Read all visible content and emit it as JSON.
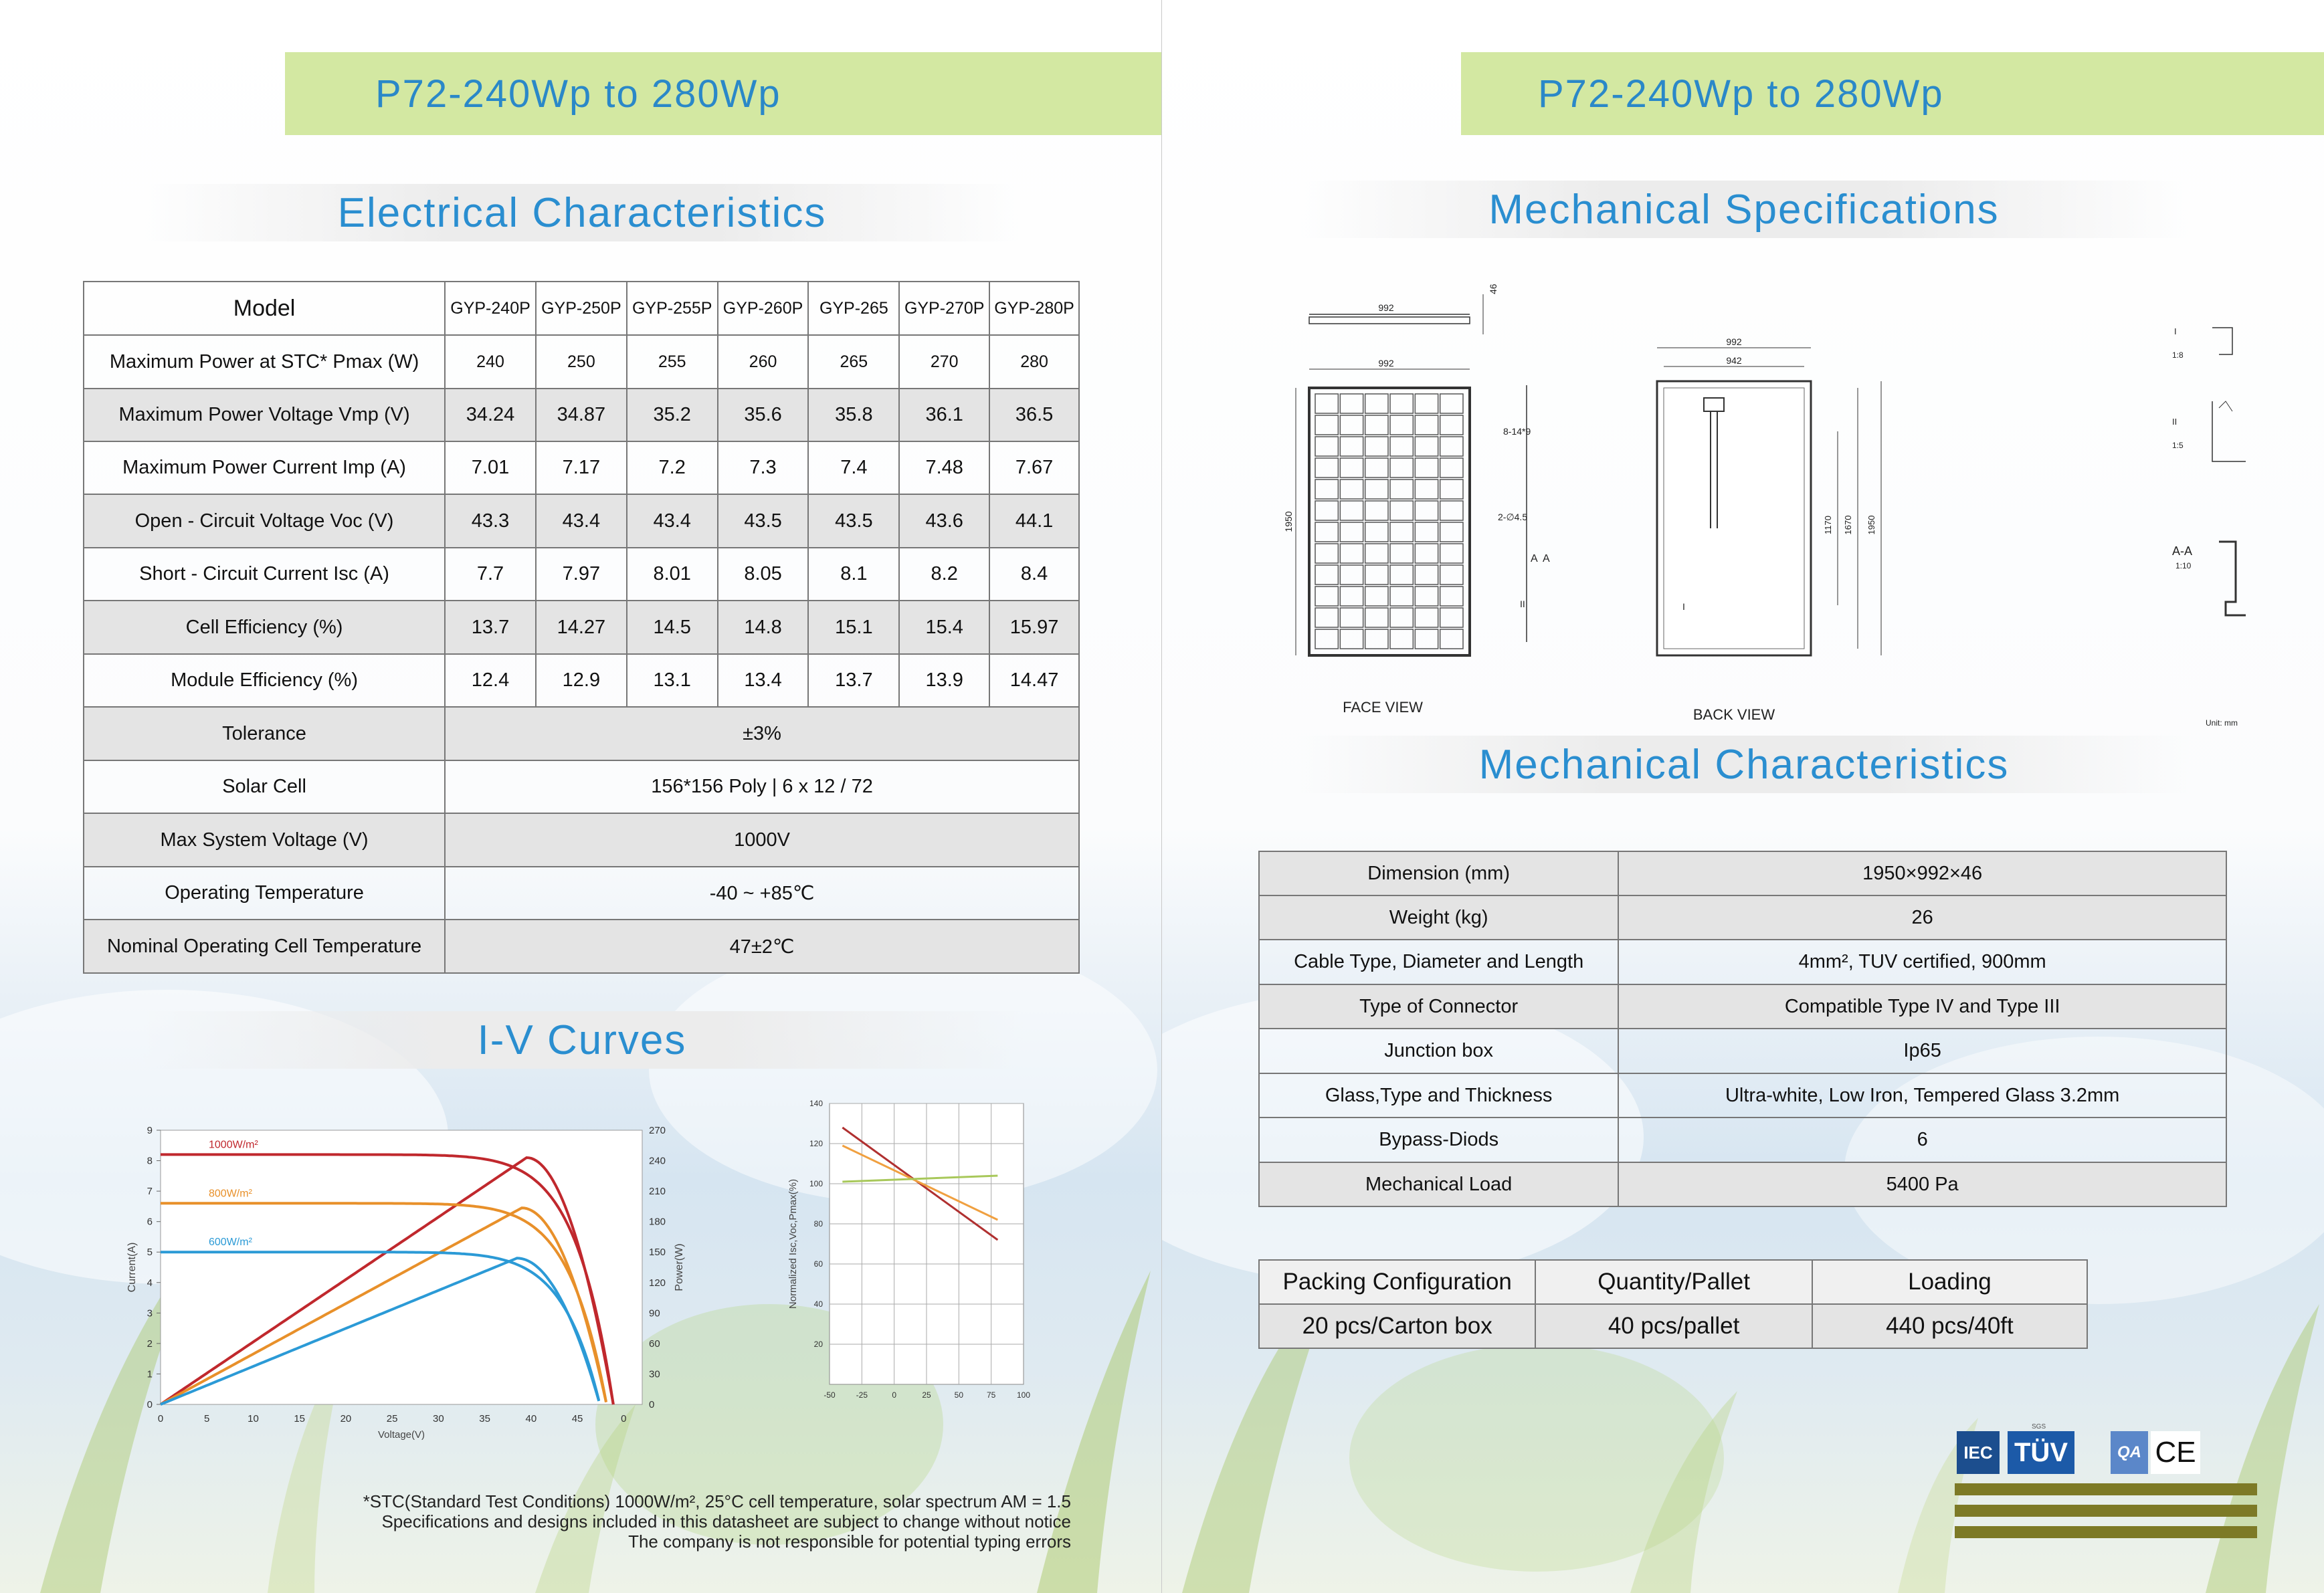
{
  "left": {
    "banner": "P72-240Wp to 280Wp",
    "electrical_title": "Electrical Characteristics",
    "electrical": {
      "model_label": "Model",
      "models": [
        "GYP-240P",
        "GYP-250P",
        "GYP-255P",
        "GYP-260P",
        "GYP-265",
        "GYP-270P",
        "GYP-280P"
      ],
      "rows": [
        {
          "label": "Maximum Power at STC* Pmax (W)",
          "values": [
            "240",
            "250",
            "255",
            "260",
            "265",
            "270",
            "280"
          ]
        },
        {
          "label": "Maximum Power Voltage Vmp (V)",
          "values": [
            "34.24",
            "34.87",
            "35.2",
            "35.6",
            "35.8",
            "36.1",
            "36.5"
          ]
        },
        {
          "label": "Maximum Power Current Imp (A)",
          "values": [
            "7.01",
            "7.17",
            "7.2",
            "7.3",
            "7.4",
            "7.48",
            "7.67"
          ]
        },
        {
          "label": "Open - Circuit Voltage Voc (V)",
          "values": [
            "43.3",
            "43.4",
            "43.4",
            "43.5",
            "43.5",
            "43.6",
            "44.1"
          ]
        },
        {
          "label": "Short - Circuit Current Isc (A)",
          "values": [
            "7.7",
            "7.97",
            "8.01",
            "8.05",
            "8.1",
            "8.2",
            "8.4"
          ]
        },
        {
          "label": "Cell Efficiency (%)",
          "values": [
            "13.7",
            "14.27",
            "14.5",
            "14.8",
            "15.1",
            "15.4",
            "15.97"
          ]
        },
        {
          "label": "Module Efficiency (%)",
          "values": [
            "12.4",
            "12.9",
            "13.1",
            "13.4",
            "13.7",
            "13.9",
            "14.47"
          ]
        }
      ],
      "spanned_rows": [
        {
          "label": "Tolerance",
          "value": "±3%"
        },
        {
          "label": "Solar Cell",
          "value": "156*156 Poly | 6 x 12 / 72"
        },
        {
          "label": "Max System Voltage (V)",
          "value": "1000V"
        },
        {
          "label": "Operating Temperature",
          "value": "-40 ~ +85℃"
        },
        {
          "label": "Nominal Operating Cell Temperature",
          "value": "47±2℃"
        }
      ]
    },
    "iv_title": "I-V Curves",
    "footnote": [
      "*STC(Standard Test Conditions) 1000W/m², 25°C cell temperature, solar spectrum AM = 1.5",
      "Specifications and designs included in this datasheet are subject to change without notice",
      "The company is not responsible for potential typing errors"
    ]
  },
  "chart_data": [
    {
      "type": "line",
      "xlabel": "Voltage(V)",
      "ylabel": "Current(A)",
      "y2label": "Power(W)",
      "x_ticks": [
        "0",
        "5",
        "10",
        "15",
        "20",
        "25",
        "30",
        "35",
        "40",
        "45",
        "0"
      ],
      "y_ticks": [
        "0",
        "1",
        "2",
        "3",
        "4",
        "5",
        "6",
        "7",
        "8",
        "9"
      ],
      "y2_ticks": [
        "0",
        "30",
        "60",
        "90",
        "120",
        "150",
        "180",
        "210",
        "240",
        "270"
      ],
      "xlim": [
        0,
        50
      ],
      "ylim": [
        0,
        9
      ],
      "y2lim": [
        0,
        300
      ],
      "series": [
        {
          "name": "1000W/m²",
          "color": "#c0282d",
          "isc": 8.2,
          "voc": 47,
          "pmax": 270,
          "vmp": 38
        },
        {
          "name": "800W/m²",
          "color": "#e8902a",
          "isc": 6.6,
          "voc": 46.3,
          "pmax": 215,
          "vmp": 37.5
        },
        {
          "name": "600W/m²",
          "color": "#2b9ad6",
          "isc": 5.0,
          "voc": 45.6,
          "pmax": 160,
          "vmp": 37
        }
      ]
    },
    {
      "type": "line",
      "ylabel": "Normalized Isc,Voc,Pmax(%)",
      "x_ticks": [
        "-50",
        "-25",
        "0",
        "25",
        "50",
        "75",
        "100"
      ],
      "y_ticks": [
        "20",
        "40",
        "60",
        "80",
        "100",
        "120",
        "140"
      ],
      "xlim": [
        -50,
        100
      ],
      "ylim": [
        0,
        140
      ],
      "series": [
        {
          "color": "#b03030",
          "x": [
            -40,
            80
          ],
          "y": [
            128,
            72
          ]
        },
        {
          "color": "#f0a040",
          "x": [
            -40,
            80
          ],
          "y": [
            119,
            82
          ]
        },
        {
          "color": "#a8c85a",
          "x": [
            -40,
            80
          ],
          "y": [
            101,
            104
          ]
        }
      ]
    }
  ],
  "right": {
    "banner": "P72-240Wp to 280Wp",
    "mech_spec_title": "Mechanical Specifications",
    "drawing": {
      "face_view": "FACE VIEW",
      "back_view": "BACK VIEW",
      "unit": "Unit: mm",
      "dims": {
        "w": "992",
        "inner": "942",
        "h": "1950",
        "h1670": "1670",
        "h1170": "1170",
        "t": "46",
        "holes": "8-14*9",
        "ground": "2-∅4.5"
      },
      "markers": {
        "sec_a": "A",
        "sec_ii": "II",
        "sec_i": "I",
        "aa": "A-A",
        "s1": "1:8",
        "s2": "1:5",
        "s3": "1:10"
      }
    },
    "mech_char_title": "Mechanical Characteristics",
    "mechanical": [
      {
        "label": "Dimension (mm)",
        "value": "1950×992×46"
      },
      {
        "label": "Weight (kg)",
        "value": "26"
      },
      {
        "label": "Cable Type, Diameter and Length",
        "value": "4mm², TUV certified, 900mm"
      },
      {
        "label": "Type  of Connector",
        "value": "Compatible Type IV and Type III"
      },
      {
        "label": "Junction box",
        "value": "Ip65"
      },
      {
        "label": "Glass,Type and Thickness",
        "value": "Ultra-white, Low Iron, Tempered Glass 3.2mm"
      },
      {
        "label": "Bypass-Diods",
        "value": "6"
      },
      {
        "label": "Mechanical Load",
        "value": "5400 Pa"
      }
    ],
    "packing": {
      "headers": [
        "Packing Configuration",
        "Quantity/Pallet",
        "Loading"
      ],
      "values": [
        "20 pcs/Carton box",
        "40 pcs/pallet",
        "440 pcs/40ft"
      ]
    },
    "certs": [
      "IEC",
      "TÜV",
      "QA",
      "CE"
    ],
    "cert_small": "SGS"
  }
}
